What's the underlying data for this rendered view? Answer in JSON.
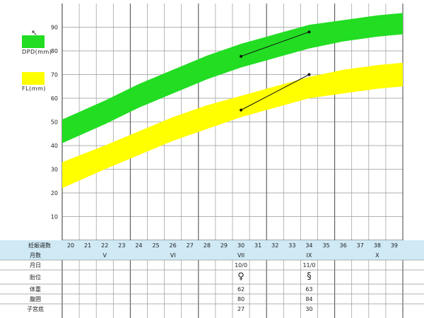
{
  "chart_data": {
    "type": "area",
    "x_range": [
      19.5,
      39.5
    ],
    "ylim": [
      0,
      100
    ],
    "y_ticks": [
      10,
      20,
      30,
      40,
      50,
      60,
      70,
      80,
      90
    ],
    "series": [
      {
        "name": "DPD(mm)",
        "color": "#22dd22",
        "x": [
          19.5,
          22,
          24,
          26,
          28,
          30,
          32,
          34,
          36,
          38,
          39.5
        ],
        "lower": [
          41,
          49,
          56,
          62,
          68,
          73,
          77,
          81,
          84,
          86,
          87
        ],
        "upper": [
          51,
          59,
          66,
          72,
          78,
          83,
          87,
          91,
          93,
          95,
          96
        ]
      },
      {
        "name": "FL(mm)",
        "color": "#ffff00",
        "x": [
          19.5,
          22,
          24,
          26,
          28,
          30,
          32,
          34,
          36,
          38,
          39.5
        ],
        "lower": [
          22,
          30,
          36,
          42,
          47,
          52,
          56,
          60,
          62,
          64,
          65
        ],
        "upper": [
          33,
          40,
          46,
          52,
          57,
          61,
          65,
          69,
          72,
          74,
          75
        ]
      }
    ],
    "measurements": [
      {
        "series": "DPD(mm)",
        "points": [
          [
            30,
            77.7
          ],
          [
            34,
            88
          ]
        ]
      },
      {
        "series": "FL(mm)",
        "points": [
          [
            30,
            55
          ],
          [
            34,
            70
          ]
        ]
      }
    ],
    "grid": true
  },
  "legend": {
    "dpd": {
      "label": "DPD(mm)",
      "color": "#22dd22"
    },
    "fl": {
      "label": "FL(mm)",
      "color": "#ffff00"
    }
  },
  "table": {
    "week_header": "妊娠週数",
    "weeks": [
      "20",
      "21",
      "22",
      "23",
      "24",
      "25",
      "26",
      "27",
      "28",
      "29",
      "30",
      "31",
      "32",
      "33",
      "34",
      "35",
      "36",
      "37",
      "38",
      "39"
    ],
    "month_header": "月数",
    "months": [
      {
        "label": "V",
        "x": 22
      },
      {
        "label": "VI",
        "x": 26
      },
      {
        "label": "VII",
        "x": 30
      },
      {
        "label": "IX",
        "x": 34
      },
      {
        "label": "X",
        "x": 38
      }
    ],
    "rows": [
      {
        "label": "月日",
        "v30": "10/0",
        "v34": "11/0"
      },
      {
        "label": "胎位",
        "v30": "♀",
        "v34": "§"
      },
      {
        "label": "体重",
        "v30": "62",
        "v34": "63"
      },
      {
        "label": "腹囲",
        "v30": "80",
        "v34": "84"
      },
      {
        "label": "子宮底",
        "v30": "27",
        "v34": "30"
      }
    ]
  },
  "colors": {
    "grid": "#999999",
    "gridBold": "#555555",
    "headerBg": "#cfe9f5",
    "marker": "#111111"
  }
}
